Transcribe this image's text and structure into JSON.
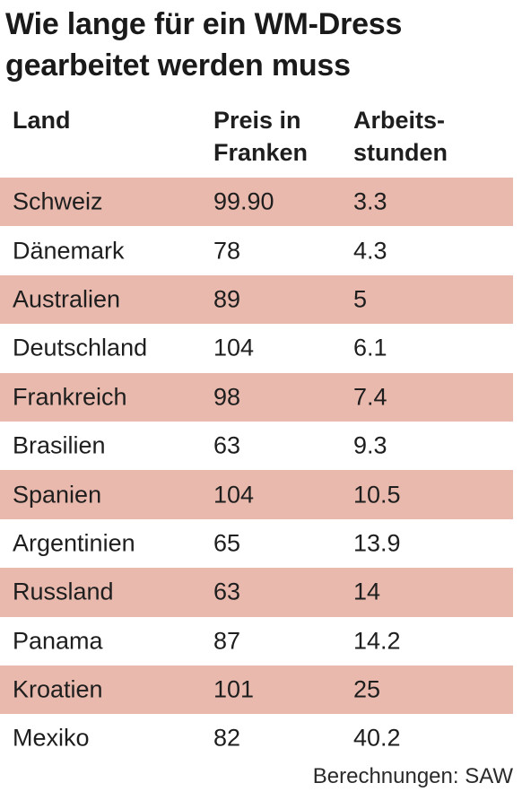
{
  "title": {
    "line1": "Wie lange für ein WM-Dress",
    "line2": "gearbeitet werden muss"
  },
  "headers": [
    {
      "line1": "Land",
      "line2": ""
    },
    {
      "line1": "Preis in",
      "line2": "Franken"
    },
    {
      "line1": "Arbeits-",
      "line2": "stunden"
    }
  ],
  "source": "Berechnungen: SAW",
  "colors": {
    "band": "#e8b9ac",
    "text": "#1e1e1e"
  },
  "chart_data": {
    "type": "table",
    "title": "Wie lange für ein WM-Dress gearbeitet werden muss",
    "columns": [
      "Land",
      "Preis in Franken",
      "Arbeitsstunden"
    ],
    "rows": [
      [
        "Schweiz",
        "99.90",
        "3.3"
      ],
      [
        "Dänemark",
        "78",
        "4.3"
      ],
      [
        "Australien",
        "89",
        "5"
      ],
      [
        "Deutschland",
        "104",
        "6.1"
      ],
      [
        "Frankreich",
        "98",
        "7.4"
      ],
      [
        "Brasilien",
        "63",
        "9.3"
      ],
      [
        "Spanien",
        "104",
        "10.5"
      ],
      [
        "Argentinien",
        "65",
        "13.9"
      ],
      [
        "Russland",
        "63",
        "14"
      ],
      [
        "Panama",
        "87",
        "14.2"
      ],
      [
        "Kroatien",
        "101",
        "25"
      ],
      [
        "Mexiko",
        "82",
        "40.2"
      ]
    ]
  }
}
